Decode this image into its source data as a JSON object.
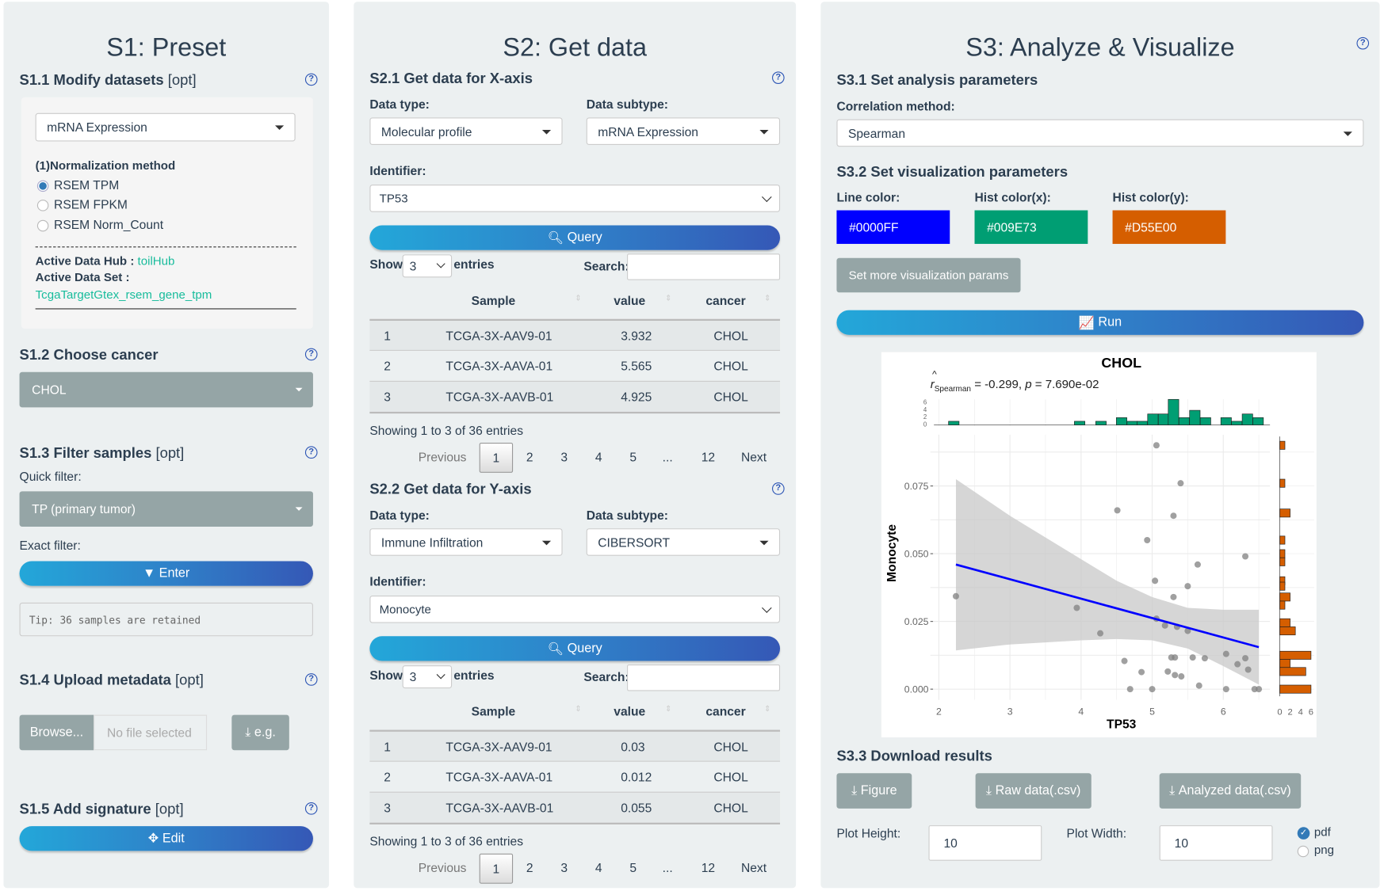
{
  "s1": {
    "title": "S1: Preset",
    "s11": {
      "title": "S1.1 Modify datasets",
      "opt": "[opt]",
      "dataset_select": "mRNA Expression",
      "norm_label": "(1)Normalization method",
      "norm_options": [
        "RSEM TPM",
        "RSEM FPKM",
        "RSEM Norm_Count"
      ],
      "norm_selected": "RSEM TPM",
      "hub_label": "Active Data Hub :",
      "hub_value": "toilHub",
      "set_label": "Active Data Set :",
      "set_value": "TcgaTargetGtex_rsem_gene_tpm"
    },
    "s12": {
      "title": "S1.2 Choose cancer",
      "cancer": "CHOL"
    },
    "s13": {
      "title": "S1.3 Filter samples",
      "opt": "[opt]",
      "quick_label": "Quick filter:",
      "quick_value": "TP (primary tumor)",
      "exact_label": "Exact filter:",
      "enter_label": "Enter",
      "tip": "Tip: 36 samples are retained"
    },
    "s14": {
      "title": "S1.4 Upload metadata",
      "opt": "[opt]",
      "browse_label": "Browse...",
      "file_placeholder": "No file selected",
      "example_label": "e.g."
    },
    "s15": {
      "title": "S1.5 Add signature",
      "opt": "[opt]",
      "edit_label": "Edit"
    }
  },
  "s2": {
    "title": "S2: Get data",
    "x": {
      "title": "S2.1 Get data for X-axis",
      "type_label": "Data type:",
      "type_value": "Molecular profile",
      "subtype_label": "Data subtype:",
      "subtype_value": "mRNA Expression",
      "id_label": "Identifier:",
      "id_value": "TP53",
      "query_label": "Query",
      "show_label": "Show",
      "show_value": "3",
      "entries_label": "entries",
      "search_label": "Search:",
      "search_value": "",
      "columns": [
        "Sample",
        "value",
        "cancer"
      ],
      "rows": [
        {
          "n": "1",
          "sample": "TCGA-3X-AAV9-01",
          "value": "3.932",
          "cancer": "CHOL"
        },
        {
          "n": "2",
          "sample": "TCGA-3X-AAVA-01",
          "value": "5.565",
          "cancer": "CHOL"
        },
        {
          "n": "3",
          "sample": "TCGA-3X-AAVB-01",
          "value": "4.925",
          "cancer": "CHOL"
        }
      ],
      "info": "Showing 1 to 3 of 36 entries",
      "pages": [
        "Previous",
        "1",
        "2",
        "3",
        "4",
        "5",
        "...",
        "12",
        "Next"
      ],
      "current_page": "1"
    },
    "y": {
      "title": "S2.2 Get data for Y-axis",
      "type_label": "Data type:",
      "type_value": "Immune Infiltration",
      "subtype_label": "Data subtype:",
      "subtype_value": "CIBERSORT",
      "id_label": "Identifier:",
      "id_value": "Monocyte",
      "query_label": "Query",
      "show_label": "Show",
      "show_value": "3",
      "entries_label": "entries",
      "search_label": "Search:",
      "search_value": "",
      "columns": [
        "Sample",
        "value",
        "cancer"
      ],
      "rows": [
        {
          "n": "1",
          "sample": "TCGA-3X-AAV9-01",
          "value": "0.03",
          "cancer": "CHOL"
        },
        {
          "n": "2",
          "sample": "TCGA-3X-AAVA-01",
          "value": "0.012",
          "cancer": "CHOL"
        },
        {
          "n": "3",
          "sample": "TCGA-3X-AAVB-01",
          "value": "0.055",
          "cancer": "CHOL"
        }
      ],
      "info": "Showing 1 to 3 of 36 entries",
      "pages": [
        "Previous",
        "1",
        "2",
        "3",
        "4",
        "5",
        "...",
        "12",
        "Next"
      ],
      "current_page": "1"
    }
  },
  "s3": {
    "title": "S3: Analyze & Visualize",
    "s31": {
      "title": "S3.1 Set analysis parameters",
      "method_label": "Correlation method:",
      "method_value": "Spearman"
    },
    "s32": {
      "title": "S3.2 Set visualization parameters",
      "line_label": "Line color:",
      "line_color": "#0000FF",
      "histx_label": "Hist color(x):",
      "histx_color": "#009E73",
      "histy_label": "Hist color(y):",
      "histy_color": "#D55E00",
      "more_label": "Set more visualization params",
      "run_label": "Run"
    },
    "s33": {
      "title": "S3.3 Download results",
      "figure_label": "Figure",
      "raw_label": "Raw data(.csv)",
      "analyzed_label": "Analyzed data(.csv)",
      "height_label": "Plot Height:",
      "height_value": "10",
      "width_label": "Plot Width:",
      "width_value": "10",
      "formats": [
        "pdf",
        "png"
      ],
      "format_selected": "pdf"
    }
  },
  "chart_data": {
    "type": "scatter",
    "title": "CHOL",
    "subtitle": {
      "r_symbol": "r",
      "r_sub": "Spearman",
      "rest": " = -0.299, ",
      "p": "p",
      "p_rest": " = 7.690e-02"
    },
    "xlabel": "TP53",
    "ylabel": "Monocyte",
    "xlim": [
      1.8,
      6.8
    ],
    "ylim": [
      -0.004,
      0.092
    ],
    "xticks": [
      "2",
      "3",
      "4",
      "5",
      "6"
    ],
    "yticks": [
      "0.000",
      "0.025",
      "0.050",
      "0.075"
    ],
    "point_color": "#808080",
    "line_color": "#0000FF",
    "histx_color": "#009E73",
    "histy_color": "#D55E00",
    "points": [
      [
        2.24,
        0.0343
      ],
      [
        5.06,
        0.09
      ],
      [
        5.4,
        0.076
      ],
      [
        4.51,
        0.066
      ],
      [
        5.3,
        0.064
      ],
      [
        4.93,
        0.055
      ],
      [
        6.31,
        0.049
      ],
      [
        5.64,
        0.046
      ],
      [
        5.04,
        0.04
      ],
      [
        5.5,
        0.038
      ],
      [
        5.3,
        0.034
      ],
      [
        3.94,
        0.03
      ],
      [
        5.06,
        0.026
      ],
      [
        5.18,
        0.0235
      ],
      [
        5.35,
        0.023
      ],
      [
        5.5,
        0.0215
      ],
      [
        4.27,
        0.0206
      ],
      [
        6.04,
        0.013
      ],
      [
        5.27,
        0.0117
      ],
      [
        5.32,
        0.0117
      ],
      [
        5.57,
        0.0117
      ],
      [
        5.74,
        0.0114
      ],
      [
        6.31,
        0.0114
      ],
      [
        4.61,
        0.0104
      ],
      [
        6.2,
        0.0092
      ],
      [
        6.35,
        0.0072
      ],
      [
        4.85,
        0.0063
      ],
      [
        5.22,
        0.0065
      ],
      [
        5.32,
        0.0052
      ],
      [
        5.41,
        0.0047
      ],
      [
        5.66,
        0.0013
      ],
      [
        4.69,
        0
      ],
      [
        5.0,
        0
      ],
      [
        6.04,
        0
      ],
      [
        6.44,
        0
      ],
      [
        6.5,
        0
      ]
    ],
    "fit_line": [
      [
        2.24,
        0.046
      ],
      [
        6.5,
        0.0155
      ]
    ],
    "ci_upper": [
      [
        2.24,
        0.0775
      ],
      [
        3,
        0.064
      ],
      [
        4,
        0.048
      ],
      [
        4.5,
        0.04
      ],
      [
        5,
        0.034
      ],
      [
        5.5,
        0.03
      ],
      [
        6,
        0.0293
      ],
      [
        6.5,
        0.0293
      ]
    ],
    "ci_lower": [
      [
        2.24,
        0.0143
      ],
      [
        3,
        0.0165
      ],
      [
        4,
        0.018
      ],
      [
        4.5,
        0.0185
      ],
      [
        5,
        0.018
      ],
      [
        5.5,
        0.015
      ],
      [
        6,
        0.0085
      ],
      [
        6.5,
        0.0017
      ]
    ],
    "histx": {
      "bin_centers": [
        2.21,
        3.98,
        4.28,
        4.57,
        4.72,
        4.86,
        5.01,
        5.16,
        5.3,
        5.45,
        5.6,
        5.75,
        6.04,
        6.19,
        6.34,
        6.49
      ],
      "counts": [
        1,
        1,
        1,
        2,
        1,
        1,
        3,
        3,
        7,
        2,
        4,
        2,
        2,
        1,
        3,
        2
      ],
      "ticks": [
        "0",
        "2",
        "4",
        "6"
      ]
    },
    "histy": {
      "bin_centers": [
        0.09,
        0.076,
        0.065,
        0.055,
        0.05,
        0.047,
        0.04,
        0.038,
        0.034,
        0.031,
        0.0245,
        0.0215,
        0.0125,
        0.0095,
        0.0065,
        0.0
      ],
      "counts": [
        1,
        1,
        2,
        1,
        1,
        1,
        1,
        1,
        2,
        1,
        2,
        3,
        6,
        2,
        5,
        6
      ],
      "ticks": [
        "0",
        "2",
        "4",
        "6"
      ]
    }
  }
}
